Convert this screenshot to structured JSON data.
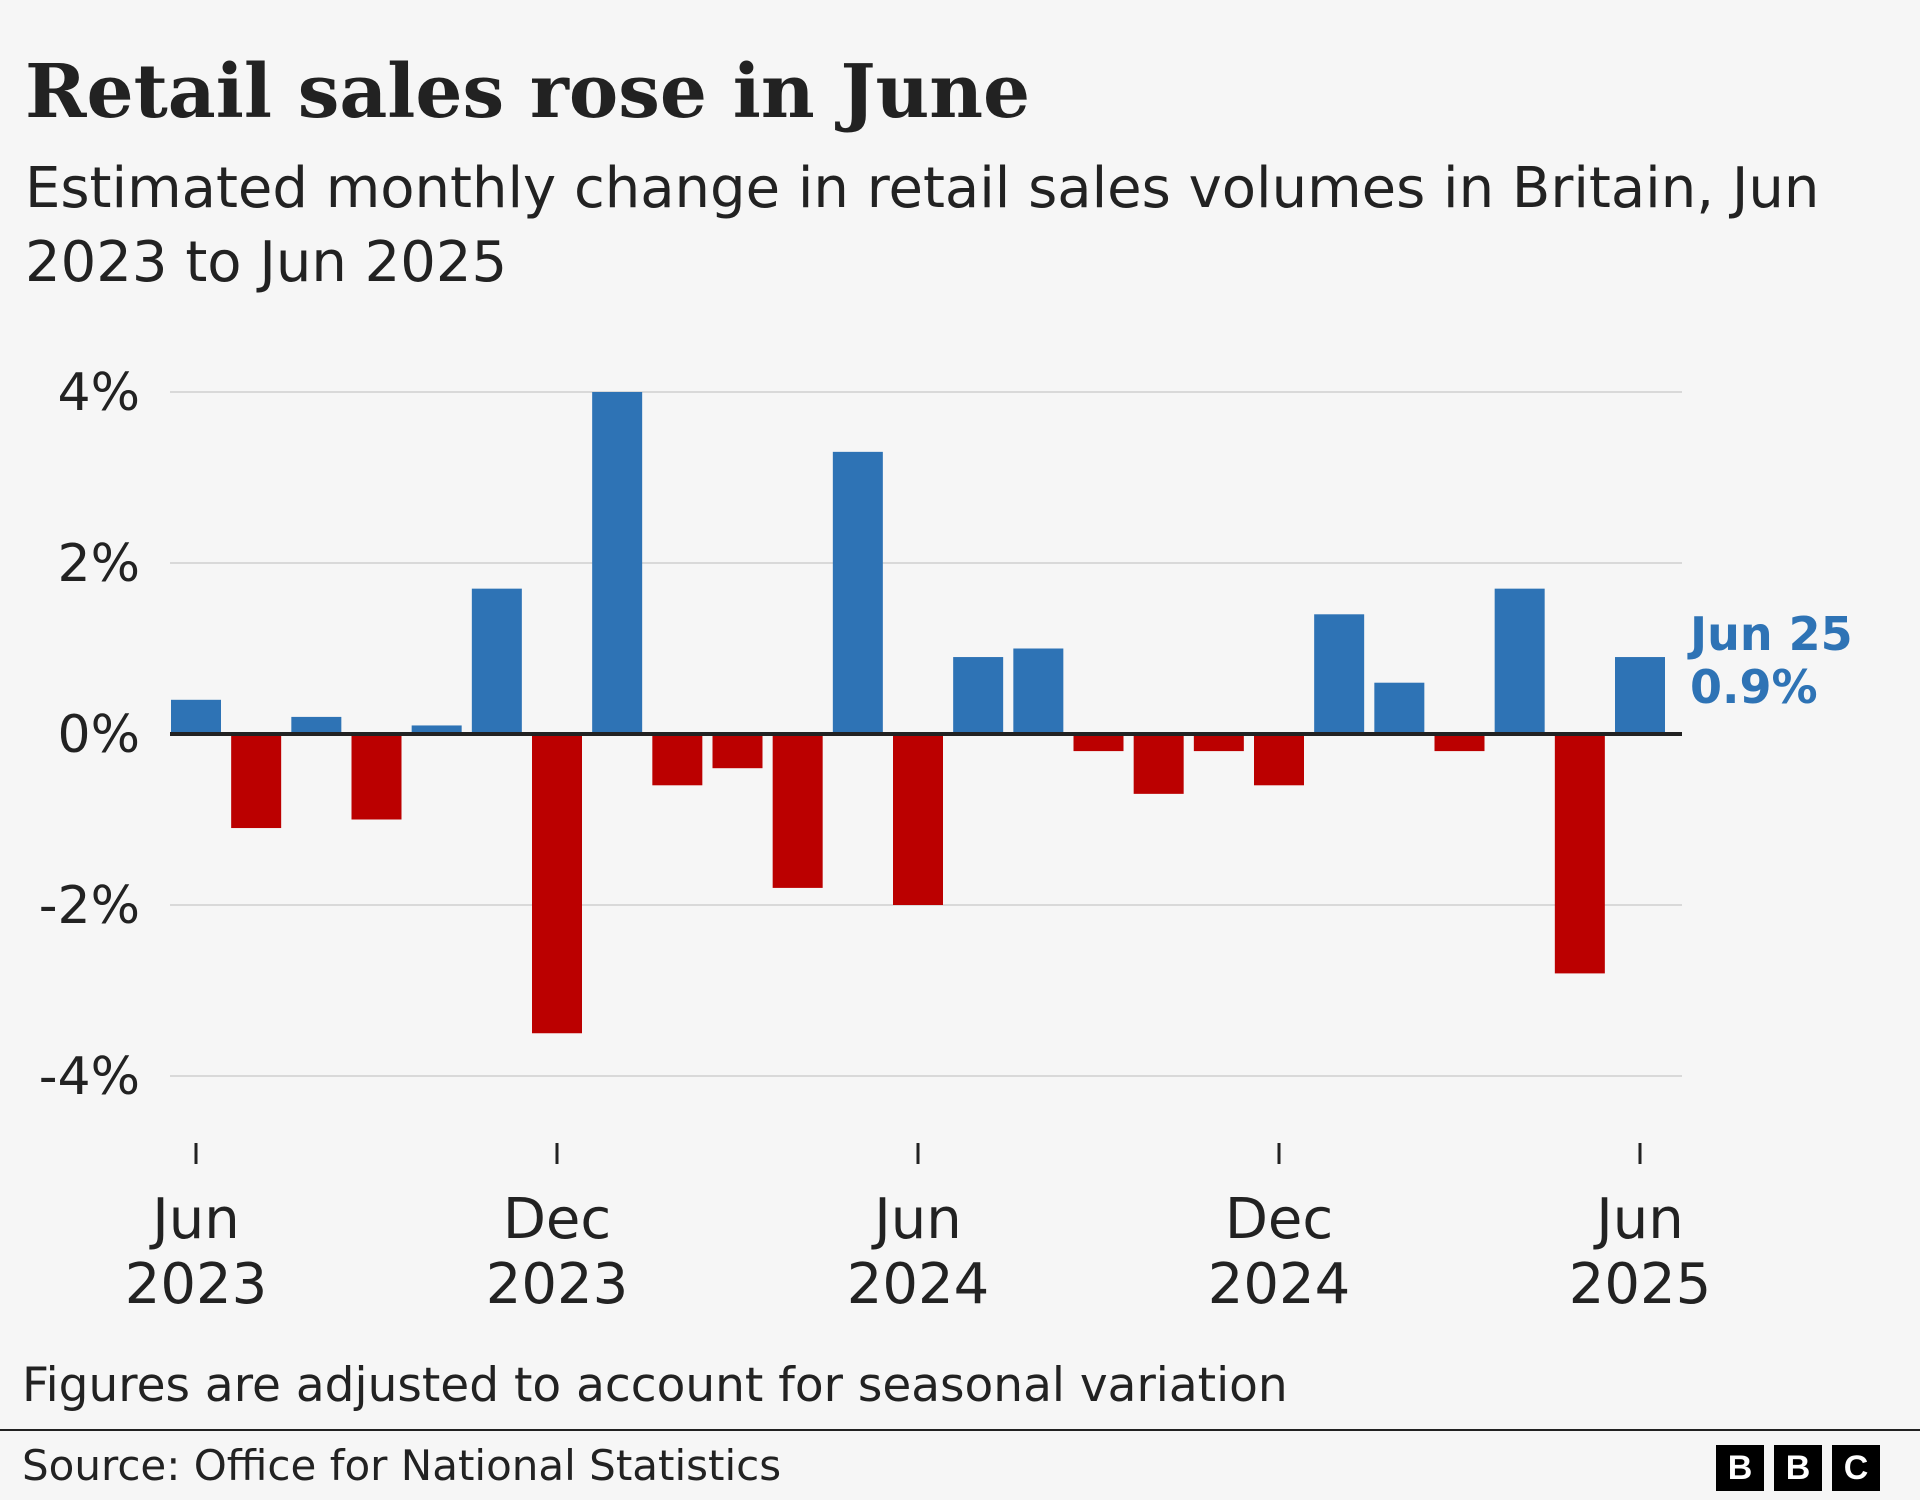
{
  "title": "Retail sales rose in June",
  "subtitle": "Estimated monthly change in retail sales volumes in Britain, Jun 2023 to Jun 2025",
  "footnote": "Figures are adjusted to account for seasonal variation",
  "source": "Source: Office for National Statistics",
  "logo": [
    "B",
    "B",
    "C"
  ],
  "colors": {
    "positive": "#2e73b5",
    "negative": "#bb0000",
    "grid": "#d9d9d9",
    "axis": "#222222",
    "text": "#222222"
  },
  "chart_data": {
    "type": "bar",
    "title": "Retail sales rose in June",
    "xlabel": "",
    "ylabel": "",
    "ylim": [
      -4.7,
      4.2
    ],
    "yticks": [
      4,
      2,
      0,
      -2,
      -4
    ],
    "ytick_labels": [
      "4%",
      "2%",
      "0%",
      "-2%",
      "-4%"
    ],
    "categories": [
      "Jun 2023",
      "Jul 2023",
      "Aug 2023",
      "Sep 2023",
      "Oct 2023",
      "Nov 2023",
      "Dec 2023",
      "Jan 2024",
      "Feb 2024",
      "Mar 2024",
      "Apr 2024",
      "May 2024",
      "Jun 2024",
      "Jul 2024",
      "Aug 2024",
      "Sep 2024",
      "Oct 2024",
      "Nov 2024",
      "Dec 2024",
      "Jan 2025",
      "Feb 2025",
      "Mar 2025",
      "Apr 2025",
      "May 2025",
      "Jun 2025"
    ],
    "values": [
      0.4,
      -1.1,
      0.2,
      -1.0,
      0.1,
      1.7,
      -3.5,
      4.0,
      -0.6,
      -0.4,
      -1.8,
      3.3,
      -2.0,
      0.9,
      1.0,
      -0.2,
      -0.7,
      -0.2,
      -0.6,
      1.4,
      0.6,
      -0.2,
      1.7,
      -2.8,
      0.9
    ],
    "xticks": [
      {
        "index": 0,
        "line1": "Jun",
        "line2": "2023"
      },
      {
        "index": 6,
        "line1": "Dec",
        "line2": "2023"
      },
      {
        "index": 12,
        "line1": "Jun",
        "line2": "2024"
      },
      {
        "index": 18,
        "line1": "Dec",
        "line2": "2024"
      },
      {
        "index": 24,
        "line1": "Jun",
        "line2": "2025"
      }
    ],
    "annotation": {
      "index": 24,
      "label": "Jun 25",
      "value_label": "0.9%"
    }
  }
}
